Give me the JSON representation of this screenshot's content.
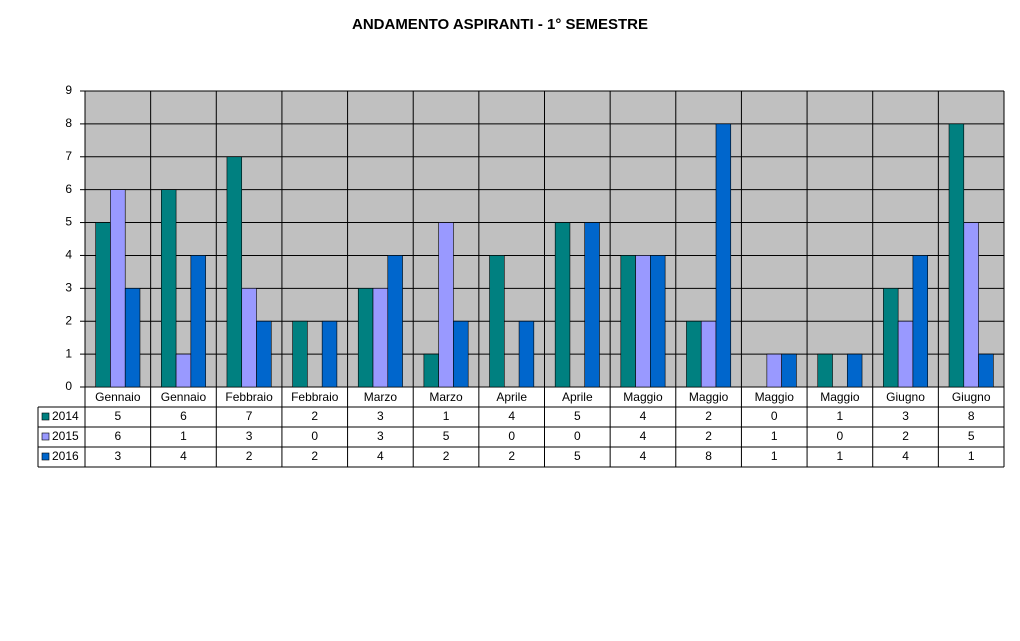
{
  "chart_data": {
    "type": "bar",
    "title": "ANDAMENTO ASPIRANTI  -  1° SEMESTRE",
    "categories": [
      "Gennaio",
      "Gennaio",
      "Febbraio",
      "Febbraio",
      "Marzo",
      "Marzo",
      "Aprile",
      "Aprile",
      "Maggio",
      "Maggio",
      "Maggio",
      "Maggio",
      "Giugno",
      "Giugno"
    ],
    "series": [
      {
        "name": "2014",
        "color": "#008080",
        "values": [
          5,
          6,
          7,
          2,
          3,
          1,
          4,
          5,
          4,
          2,
          0,
          1,
          3,
          8
        ]
      },
      {
        "name": "2015",
        "color": "#9999ff",
        "values": [
          6,
          1,
          3,
          0,
          3,
          5,
          0,
          0,
          4,
          2,
          1,
          0,
          2,
          5
        ]
      },
      {
        "name": "2016",
        "color": "#0066cc",
        "values": [
          3,
          4,
          2,
          2,
          4,
          2,
          2,
          5,
          4,
          8,
          1,
          1,
          4,
          1
        ]
      }
    ],
    "ylim": [
      0,
      9
    ],
    "yticks": [
      0,
      1,
      2,
      3,
      4,
      5,
      6,
      7,
      8,
      9
    ],
    "grid": true,
    "data_table": true
  }
}
